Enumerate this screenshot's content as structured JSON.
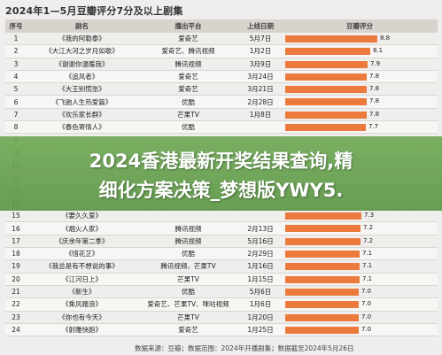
{
  "title": "2024年1—5月豆瓣评分7分及以上剧集",
  "headers": {
    "rank": "序号",
    "title": "剧名",
    "platform": "播出平台",
    "date": "上线日期",
    "score": "豆瓣评分"
  },
  "score_max": 10,
  "rows": [
    {
      "rank": "1",
      "title": "《我的阿勒泰》",
      "platform": "爱奇艺",
      "date": "5月7日",
      "score": 8.8,
      "score_label": "8.8"
    },
    {
      "rank": "2",
      "title": "《大江大河之岁月如歌》",
      "platform": "爱奇艺、腾讯视频",
      "date": "1月2日",
      "score": 8.1,
      "score_label": "8.1"
    },
    {
      "rank": "3",
      "title": "《谢谢你温暖我》",
      "platform": "腾讯视频",
      "date": "3月9日",
      "score": 7.9,
      "score_label": "7.9"
    },
    {
      "rank": "4",
      "title": "《追风者》",
      "platform": "爱奇艺",
      "date": "3月24日",
      "score": 7.8,
      "score_label": "7.8"
    },
    {
      "rank": "5",
      "title": "《大王别慌张》",
      "platform": "爱奇艺",
      "date": "3月21日",
      "score": 7.8,
      "score_label": "7.8"
    },
    {
      "rank": "6",
      "title": "《飞驰人生热爱篇》",
      "platform": "优酷",
      "date": "2月28日",
      "score": 7.8,
      "score_label": "7.8"
    },
    {
      "rank": "7",
      "title": "《欢乐家长群》",
      "platform": "芒果TV",
      "date": "1月8日",
      "score": 7.8,
      "score_label": "7.8"
    },
    {
      "rank": "8",
      "title": "《春色寄情人》",
      "platform": "优酷",
      "date": "",
      "score": 7.7,
      "score_label": "7.7"
    },
    {
      "rank": "9",
      "title": "",
      "platform": "",
      "date": "",
      "score": 0,
      "score_label": ""
    },
    {
      "rank": "10",
      "title": "",
      "platform": "",
      "date": "",
      "score": 0,
      "score_label": ""
    },
    {
      "rank": "11",
      "title": "",
      "platform": "",
      "date": "",
      "score": 0,
      "score_label": ""
    },
    {
      "rank": "12",
      "title": "",
      "platform": "",
      "date": "",
      "score": 0,
      "score_label": ""
    },
    {
      "rank": "13",
      "title": "",
      "platform": "",
      "date": "",
      "score": 0,
      "score_label": ""
    },
    {
      "rank": "14",
      "title": "",
      "platform": "",
      "date": "",
      "score": 0,
      "score_label": ""
    },
    {
      "rank": "15",
      "title": "《要久久爱》",
      "platform": "",
      "date": "",
      "score": 7.3,
      "score_label": "7.3"
    },
    {
      "rank": "16",
      "title": "《烟火人家》",
      "platform": "腾讯视频",
      "date": "2月13日",
      "score": 7.2,
      "score_label": "7.2"
    },
    {
      "rank": "17",
      "title": "《庆余年第二季》",
      "platform": "腾讯视频",
      "date": "5月16日",
      "score": 7.2,
      "score_label": "7.2"
    },
    {
      "rank": "18",
      "title": "《惜花芷》",
      "platform": "优酷",
      "date": "2月29日",
      "score": 7.1,
      "score_label": "7.1"
    },
    {
      "rank": "19",
      "title": "《我总是有不想说的事》",
      "platform": "腾讯视频、芒果TV",
      "date": "1月16日",
      "score": 7.1,
      "score_label": "7.1"
    },
    {
      "rank": "20",
      "title": "《江河日上》",
      "platform": "芒果TV",
      "date": "1月15日",
      "score": 7.1,
      "score_label": "7.1"
    },
    {
      "rank": "21",
      "title": "《新生》",
      "platform": "优酷",
      "date": "5月6日",
      "score": 7.0,
      "score_label": "7.0"
    },
    {
      "rank": "22",
      "title": "《乘风踏浪》",
      "platform": "爱奇艺、芒果TV、咪咕视频",
      "date": "1月6日",
      "score": 7.0,
      "score_label": "7.0"
    },
    {
      "rank": "23",
      "title": "《你也有今天》",
      "platform": "芒果TV",
      "date": "1月20日",
      "score": 7.0,
      "score_label": "7.0"
    },
    {
      "rank": "24",
      "title": "《射雕快跑》",
      "platform": "爱奇艺",
      "date": "1月25日",
      "score": 7.0,
      "score_label": "7.0"
    }
  ],
  "banner": {
    "line1": "2024香港最新开奖结果查询,精",
    "line2": "细化方案决策_梦想版YWY5."
  },
  "footer": "数据来源：豆瓣；数据范围：2024年开播剧集；数据截至2024年5月26日"
}
